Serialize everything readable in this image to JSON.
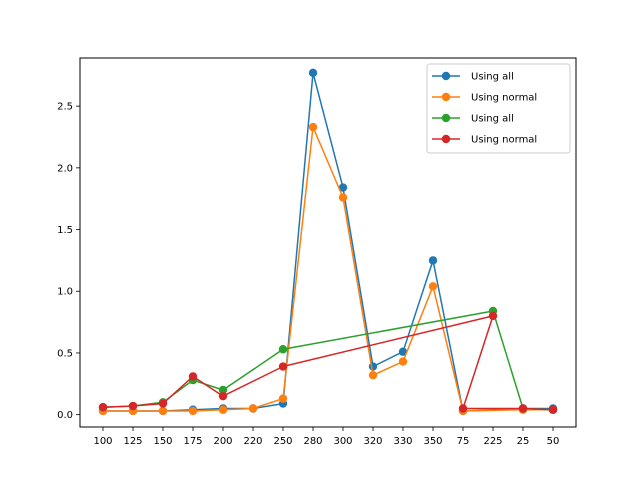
{
  "chart_data": {
    "type": "line",
    "categories": [
      "100",
      "125",
      "150",
      "175",
      "200",
      "220",
      "250",
      "280",
      "300",
      "320",
      "330",
      "350",
      "75",
      "225",
      "25",
      "50"
    ],
    "yticks": [
      "0.0",
      "0.5",
      "1.0",
      "1.5",
      "2.0",
      "2.5"
    ],
    "ylim": [
      -0.1,
      2.89
    ],
    "grid": false,
    "legend_position": "top-right",
    "series": [
      {
        "name": "Using all",
        "color": "#1f77b4",
        "x": [
          "100",
          "125",
          "150",
          "175",
          "200",
          "220",
          "250",
          "280",
          "300",
          "320",
          "330",
          "350",
          "75",
          "25",
          "50"
        ],
        "values": [
          0.03,
          0.03,
          0.03,
          0.04,
          0.05,
          0.05,
          0.09,
          2.77,
          1.84,
          0.39,
          0.51,
          1.25,
          0.03,
          0.05,
          0.05
        ]
      },
      {
        "name": "Using normal",
        "color": "#ff7f0e",
        "x": [
          "100",
          "125",
          "150",
          "175",
          "200",
          "220",
          "250",
          "280",
          "300",
          "320",
          "330",
          "350",
          "75",
          "25",
          "50"
        ],
        "values": [
          0.03,
          0.03,
          0.03,
          0.03,
          0.04,
          0.05,
          0.13,
          2.33,
          1.76,
          0.32,
          0.43,
          1.04,
          0.03,
          0.04,
          0.04
        ]
      },
      {
        "name": "Using all",
        "color": "#2ca02c",
        "x": [
          "100",
          "125",
          "150",
          "175",
          "200",
          "250",
          "225",
          "25",
          "50"
        ],
        "values": [
          0.06,
          0.07,
          0.1,
          0.28,
          0.2,
          0.53,
          0.84,
          0.05,
          0.04
        ]
      },
      {
        "name": "Using normal",
        "color": "#d62728",
        "x": [
          "100",
          "125",
          "150",
          "175",
          "200",
          "250",
          "225",
          "75",
          "25",
          "50"
        ],
        "values": [
          0.06,
          0.07,
          0.09,
          0.31,
          0.15,
          0.39,
          0.8,
          0.05,
          0.05,
          0.04
        ]
      }
    ]
  }
}
